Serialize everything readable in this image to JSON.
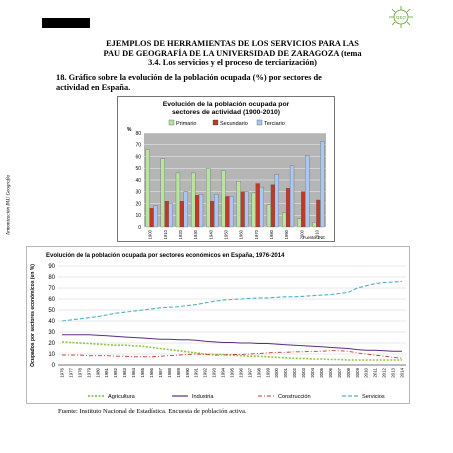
{
  "header": {
    "title_line1": "EJEMPLOS DE HERRAMIENTAS DE LOS SERVICIOS PARA LAS",
    "title_line2": "PAU DE GEOGRAFÍA DE LA UNIVERSIDAD DE ZARAGOZA (tema",
    "title_line3": "3.4. Los servicios y el proceso de terciarización)",
    "logo_text": "GEO"
  },
  "sidebar_text": "Armonización PAU Geografía",
  "question": {
    "line1": "18. Gráfico sobre la evolución de la población ocupada (%) por sectores de",
    "line2": "actividad  en España."
  },
  "source_text": "Fuente: Instituto Nacional de Estadística. Encuesta de población activa.",
  "chart_data": [
    {
      "type": "bar",
      "title": "Evolución de la población ocupada por sectores de actividad (1900-2010)",
      "ylabel": "%",
      "ylim": [
        0,
        80
      ],
      "yticks": [
        "0",
        "10",
        "20",
        "30",
        "40",
        "50",
        "60",
        "70",
        "80"
      ],
      "categories": [
        "1900",
        "1910",
        "1920",
        "1930",
        "1940",
        "1950",
        "1960",
        "1970",
        "1980",
        "1990",
        "2000",
        "2010"
      ],
      "series": [
        {
          "name": "Primario",
          "color": "#b9e3a0",
          "values": [
            66,
            58,
            46,
            46,
            50,
            48,
            39,
            29,
            19,
            12,
            7,
            4
          ]
        },
        {
          "name": "Secundario",
          "color": "#c0392b",
          "values": [
            16,
            22,
            22,
            27,
            22,
            26,
            30,
            37,
            36,
            33,
            30,
            23
          ]
        },
        {
          "name": "Terciario",
          "color": "#a9c7ef",
          "values": [
            18,
            20,
            30,
            28,
            28,
            26,
            30,
            34,
            45,
            52,
            61,
            73
          ]
        }
      ],
      "source": "Fuente: INE",
      "legend": "top"
    },
    {
      "type": "line",
      "title": "Evolución de la población ocupada por sectores económicos en España, 1976-2014",
      "ylabel": "Ocupados por sectores económicos (en %)",
      "ylim": [
        0,
        90
      ],
      "yticks": [
        "0",
        "10",
        "20",
        "30",
        "40",
        "50",
        "60",
        "70",
        "80",
        "90"
      ],
      "x": [
        "1976",
        "1977",
        "1978",
        "1979",
        "1980",
        "1981",
        "1982",
        "1983",
        "1984",
        "1985",
        "1986",
        "1987",
        "1988",
        "1989",
        "1990",
        "1991",
        "1992",
        "1993",
        "1994",
        "1995",
        "1996",
        "1997",
        "1998",
        "1999",
        "2000",
        "2001",
        "2002",
        "2003",
        "2004",
        "2005",
        "2006",
        "2007",
        "2008",
        "2009",
        "2010",
        "2011",
        "2012",
        "2013",
        "2014"
      ],
      "series": [
        {
          "name": "Agricultura",
          "color": "#8dc63f",
          "values": [
            21,
            20.5,
            20,
            19.5,
            19,
            18.5,
            18,
            18,
            17.5,
            17,
            16,
            15,
            14,
            13,
            12,
            11,
            10,
            9.5,
            9.5,
            9,
            8.5,
            8,
            8,
            7.5,
            7,
            6.5,
            6,
            6,
            5.5,
            5.5,
            5,
            5,
            4.5,
            4.5,
            4.5,
            4.5,
            4.5,
            4.5,
            4.5
          ]
        },
        {
          "name": "Industria",
          "color": "#5b2c83",
          "values": [
            27.5,
            27.5,
            27.5,
            27.5,
            27,
            26.5,
            26,
            25.5,
            25,
            24.5,
            24,
            23.5,
            23.5,
            23,
            23,
            22.5,
            21.5,
            21,
            20.5,
            20.5,
            20,
            20,
            19.5,
            19.5,
            19,
            18.5,
            18,
            17.5,
            17,
            16.5,
            16,
            15.5,
            15,
            14,
            13.5,
            13.5,
            13,
            12.5,
            12.5
          ]
        },
        {
          "name": "Construcción",
          "color": "#c0392b",
          "values": [
            9,
            9,
            9,
            8.5,
            8.5,
            8.5,
            8,
            8,
            7.5,
            7.5,
            7.5,
            8,
            8.5,
            9,
            9.5,
            10,
            9.5,
            9,
            9,
            9.5,
            9.5,
            10,
            10.5,
            11,
            11.5,
            11.5,
            12,
            12,
            12.5,
            12.5,
            13,
            13,
            12.5,
            11,
            10,
            9,
            8,
            7,
            6
          ]
        },
        {
          "name": "Servicios",
          "color": "#4fb0c6",
          "values": [
            40,
            41,
            42,
            43,
            44,
            45.5,
            47,
            48,
            49,
            50,
            51,
            52,
            52.5,
            53,
            54,
            55,
            56.5,
            58,
            59,
            59.5,
            60,
            60.5,
            61,
            61,
            61.5,
            62,
            62,
            62.5,
            63,
            63.5,
            64,
            65,
            66,
            70,
            72,
            74,
            75,
            75.5,
            76
          ]
        }
      ],
      "legend": "bottom"
    }
  ]
}
